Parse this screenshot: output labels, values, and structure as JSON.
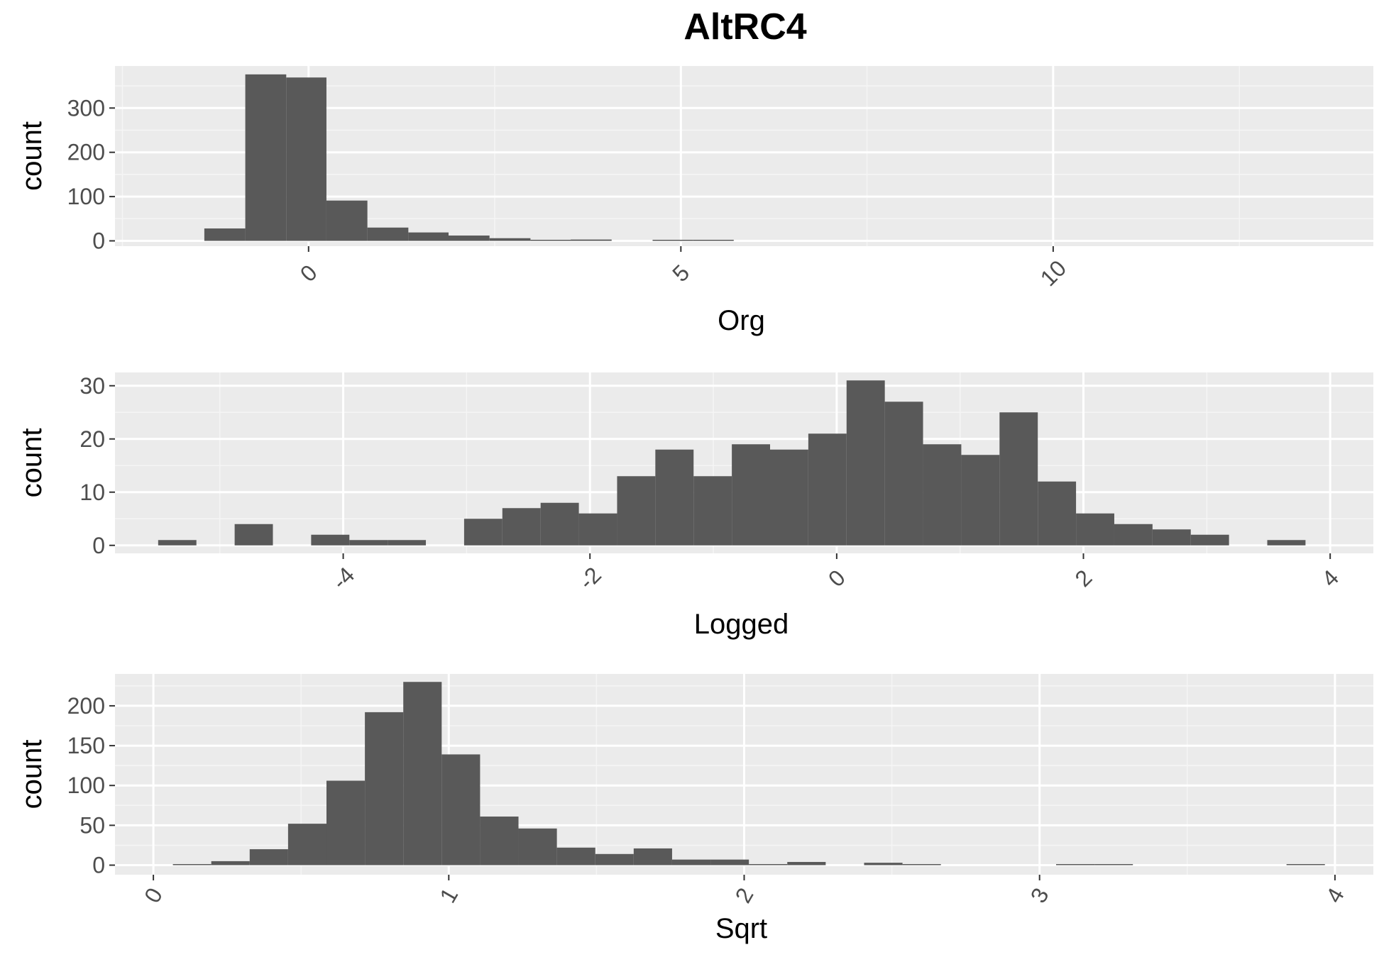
{
  "title": "AltRC4",
  "colors": {
    "panel_bg": "#ebebeb",
    "grid_major": "#ffffff",
    "grid_minor": "#f5f5f5",
    "bar_fill": "#595959",
    "tick_text": "#4d4d4d",
    "tick_mark": "#333333"
  },
  "chart_data": [
    {
      "type": "bar",
      "xlabel": "Org",
      "ylabel": "count",
      "xlim": [
        -2.6,
        14.3
      ],
      "ylim": [
        -12,
        395
      ],
      "x_major_ticks": [
        0,
        5,
        10
      ],
      "x_tick_labels": [
        "0",
        "5",
        "10"
      ],
      "x_minor_grid": [
        -2.5,
        2.5,
        7.5,
        12.5
      ],
      "y_ticks": [
        0,
        100,
        200,
        300
      ],
      "y_tick_labels": [
        "0",
        "100",
        "200",
        "300"
      ],
      "x_tick_rotation": -45,
      "bins": [
        {
          "x0": -1.4,
          "x1": -0.85,
          "count": 28
        },
        {
          "x0": -0.85,
          "x1": -0.3,
          "count": 376
        },
        {
          "x0": -0.3,
          "x1": 0.24,
          "count": 369
        },
        {
          "x0": 0.24,
          "x1": 0.79,
          "count": 91
        },
        {
          "x0": 0.79,
          "x1": 1.34,
          "count": 30
        },
        {
          "x0": 1.34,
          "x1": 1.88,
          "count": 19
        },
        {
          "x0": 1.88,
          "x1": 2.43,
          "count": 12
        },
        {
          "x0": 2.43,
          "x1": 2.98,
          "count": 6
        },
        {
          "x0": 2.98,
          "x1": 3.52,
          "count": 1
        },
        {
          "x0": 3.52,
          "x1": 4.07,
          "count": 3
        },
        {
          "x0": 4.07,
          "x1": 4.62,
          "count": 0
        },
        {
          "x0": 4.62,
          "x1": 5.16,
          "count": 1
        },
        {
          "x0": 5.16,
          "x1": 5.71,
          "count": 1
        }
      ]
    },
    {
      "type": "bar",
      "xlabel": "Logged",
      "ylabel": "count",
      "xlim": [
        -5.85,
        4.35
      ],
      "ylim": [
        -1.5,
        32.5
      ],
      "x_major_ticks": [
        -4,
        -2,
        0,
        2,
        4
      ],
      "x_tick_labels": [
        "-4",
        "-2",
        "0",
        "2",
        "4"
      ],
      "x_minor_grid": [
        -5,
        -3,
        -1,
        1,
        3
      ],
      "y_ticks": [
        0,
        10,
        20,
        30
      ],
      "y_tick_labels": [
        "0",
        "10",
        "20",
        "30"
      ],
      "x_tick_rotation": -45,
      "bins": [
        {
          "x0": -5.5,
          "x1": -5.19,
          "count": 1
        },
        {
          "x0": -5.19,
          "x1": -4.88,
          "count": 0
        },
        {
          "x0": -4.88,
          "x1": -4.57,
          "count": 4
        },
        {
          "x0": -4.57,
          "x1": -4.26,
          "count": 0
        },
        {
          "x0": -4.26,
          "x1": -3.95,
          "count": 2
        },
        {
          "x0": -3.95,
          "x1": -3.64,
          "count": 1
        },
        {
          "x0": -3.64,
          "x1": -3.33,
          "count": 1
        },
        {
          "x0": -3.33,
          "x1": -3.02,
          "count": 0
        },
        {
          "x0": -3.02,
          "x1": -2.71,
          "count": 5
        },
        {
          "x0": -2.71,
          "x1": -2.4,
          "count": 7
        },
        {
          "x0": -2.4,
          "x1": -2.09,
          "count": 8
        },
        {
          "x0": -2.09,
          "x1": -1.78,
          "count": 6
        },
        {
          "x0": -1.78,
          "x1": -1.47,
          "count": 13
        },
        {
          "x0": -1.47,
          "x1": -1.16,
          "count": 18
        },
        {
          "x0": -1.16,
          "x1": -0.85,
          "count": 13
        },
        {
          "x0": -0.85,
          "x1": -0.54,
          "count": 19
        },
        {
          "x0": -0.54,
          "x1": -0.23,
          "count": 18
        },
        {
          "x0": -0.23,
          "x1": 0.08,
          "count": 21
        },
        {
          "x0": 0.08,
          "x1": 0.39,
          "count": 31
        },
        {
          "x0": 0.39,
          "x1": 0.7,
          "count": 27
        },
        {
          "x0": 0.7,
          "x1": 1.01,
          "count": 19
        },
        {
          "x0": 1.01,
          "x1": 1.32,
          "count": 17
        },
        {
          "x0": 1.32,
          "x1": 1.63,
          "count": 25
        },
        {
          "x0": 1.63,
          "x1": 1.94,
          "count": 12
        },
        {
          "x0": 1.94,
          "x1": 2.25,
          "count": 6
        },
        {
          "x0": 2.25,
          "x1": 2.56,
          "count": 4
        },
        {
          "x0": 2.56,
          "x1": 2.87,
          "count": 3
        },
        {
          "x0": 2.87,
          "x1": 3.18,
          "count": 2
        },
        {
          "x0": 3.18,
          "x1": 3.49,
          "count": 0
        },
        {
          "x0": 3.49,
          "x1": 3.8,
          "count": 1
        }
      ]
    },
    {
      "type": "bar",
      "xlabel": "Sqrt",
      "ylabel": "count",
      "xlim": [
        -0.13,
        4.13
      ],
      "ylim": [
        -12,
        240
      ],
      "x_major_ticks": [
        0,
        1,
        2,
        3,
        4
      ],
      "x_tick_labels": [
        "0",
        "1",
        "2",
        "3",
        "4"
      ],
      "x_minor_grid": [
        0.5,
        1.5,
        2.5,
        3.5
      ],
      "y_ticks": [
        0,
        50,
        100,
        150,
        200
      ],
      "y_tick_labels": [
        "0",
        "50",
        "100",
        "150",
        "200"
      ],
      "x_tick_rotation": -60,
      "bins": [
        {
          "x0": 0.066,
          "x1": 0.196,
          "count": 1
        },
        {
          "x0": 0.196,
          "x1": 0.326,
          "count": 5
        },
        {
          "x0": 0.326,
          "x1": 0.456,
          "count": 20
        },
        {
          "x0": 0.456,
          "x1": 0.586,
          "count": 52
        },
        {
          "x0": 0.586,
          "x1": 0.716,
          "count": 106
        },
        {
          "x0": 0.716,
          "x1": 0.846,
          "count": 192
        },
        {
          "x0": 0.846,
          "x1": 0.976,
          "count": 230
        },
        {
          "x0": 0.976,
          "x1": 1.106,
          "count": 139
        },
        {
          "x0": 1.106,
          "x1": 1.236,
          "count": 61
        },
        {
          "x0": 1.236,
          "x1": 1.366,
          "count": 46
        },
        {
          "x0": 1.366,
          "x1": 1.496,
          "count": 22
        },
        {
          "x0": 1.496,
          "x1": 1.626,
          "count": 14
        },
        {
          "x0": 1.626,
          "x1": 1.756,
          "count": 21
        },
        {
          "x0": 1.756,
          "x1": 1.886,
          "count": 7
        },
        {
          "x0": 1.886,
          "x1": 2.016,
          "count": 7
        },
        {
          "x0": 2.016,
          "x1": 2.146,
          "count": 1
        },
        {
          "x0": 2.146,
          "x1": 2.276,
          "count": 4
        },
        {
          "x0": 2.276,
          "x1": 2.406,
          "count": 0
        },
        {
          "x0": 2.406,
          "x1": 2.536,
          "count": 3
        },
        {
          "x0": 2.536,
          "x1": 2.666,
          "count": 1
        },
        {
          "x0": 3.056,
          "x1": 3.186,
          "count": 1
        },
        {
          "x0": 3.186,
          "x1": 3.316,
          "count": 1
        },
        {
          "x0": 3.836,
          "x1": 3.966,
          "count": 1
        }
      ]
    }
  ]
}
